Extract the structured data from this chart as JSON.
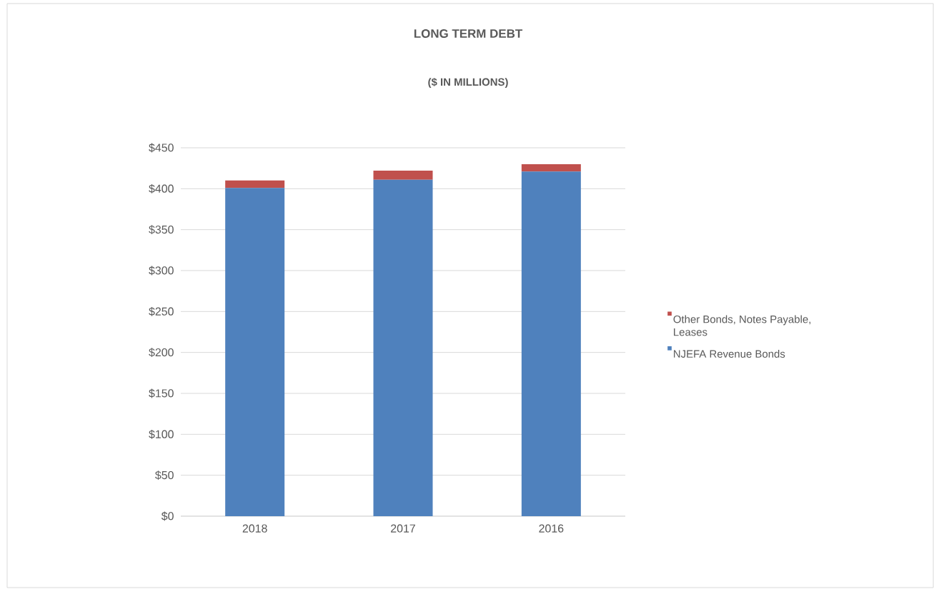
{
  "chart_data": {
    "type": "bar",
    "title": "LONG TERM DEBT",
    "subtitle": "($ IN MILLIONS)",
    "categories": [
      "2018",
      "2017",
      "2016"
    ],
    "series": [
      {
        "name": "NJEFA Revenue Bonds",
        "color": "#4f81bd",
        "values": [
          401,
          411,
          421
        ]
      },
      {
        "name": "Other Bonds, Notes Payable, Leases",
        "color": "#c0504d",
        "values": [
          9,
          11,
          9
        ]
      }
    ],
    "stacked": true,
    "ylim": [
      0,
      450
    ],
    "yticks": [
      {
        "value": 0,
        "label": "$0"
      },
      {
        "value": 50,
        "label": "$50"
      },
      {
        "value": 100,
        "label": "$100"
      },
      {
        "value": 150,
        "label": "$150"
      },
      {
        "value": 200,
        "label": "$200"
      },
      {
        "value": 250,
        "label": "$250"
      },
      {
        "value": 300,
        "label": "$300"
      },
      {
        "value": 350,
        "label": "$350"
      },
      {
        "value": 400,
        "label": "$400"
      },
      {
        "value": 450,
        "label": "$450"
      }
    ],
    "grid": "y",
    "legend": "right"
  }
}
